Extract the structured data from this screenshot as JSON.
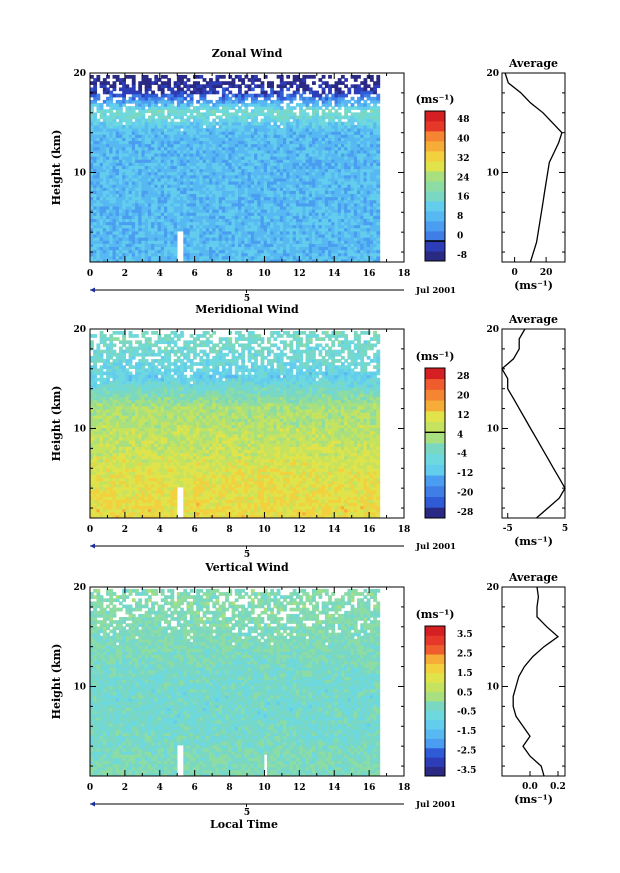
{
  "figure": {
    "date_label": "Jul 2001",
    "xlabel": "Local Time",
    "day_label": "5",
    "colorbar_unit": "(ms⁻¹)",
    "avg_unit": "(ms⁻¹)"
  },
  "chart_data": [
    {
      "type": "heatmap",
      "title": "Zonal Wind",
      "xlabel": "Local Time",
      "ylabel": "Height (km)",
      "xlim": [
        0,
        18
      ],
      "ylim": [
        1,
        20
      ],
      "xticks": [
        "0",
        "2",
        "4",
        "6",
        "8",
        "10",
        "12",
        "14",
        "16",
        "18"
      ],
      "yticks": [
        "10",
        "20"
      ],
      "data_xmax": 16.6,
      "colorbar": {
        "unit": "(ms⁻¹)",
        "min": -8,
        "max": 52,
        "step": 4,
        "zero_line": 0,
        "labels": [
          "48",
          "40",
          "32",
          "24",
          "16",
          "8",
          "0",
          "-8"
        ]
      },
      "profile_levels": [
        {
          "z": 14,
          "v": 10
        },
        {
          "z": 16,
          "v": 18
        },
        {
          "z": 18,
          "v": -4
        },
        {
          "z": 19.5,
          "v": -8
        }
      ],
      "average": {
        "title": "Average",
        "xlabel": "(ms⁻¹)",
        "xticks": [
          "0",
          "20"
        ],
        "xlim": [
          -8,
          32
        ],
        "height": [
          1,
          2,
          3,
          4,
          5,
          6,
          7,
          8,
          9,
          10,
          11,
          12,
          13,
          14,
          15,
          16,
          17,
          18,
          19,
          20
        ],
        "value": [
          10,
          12,
          14,
          15,
          16,
          17,
          18,
          19,
          20,
          21,
          22,
          25,
          28,
          30,
          24,
          18,
          10,
          4,
          -4,
          -6
        ]
      }
    },
    {
      "type": "heatmap",
      "title": "Meridional Wind",
      "xlabel": "Local Time",
      "ylabel": "Height (km)",
      "xlim": [
        0,
        18
      ],
      "ylim": [
        1,
        20
      ],
      "xticks": [
        "0",
        "2",
        "4",
        "6",
        "8",
        "10",
        "12",
        "14",
        "16",
        "18"
      ],
      "yticks": [
        "10",
        "20"
      ],
      "data_xmax": 16.6,
      "colorbar": {
        "unit": "(ms⁻¹)",
        "min": -28,
        "max": 28,
        "step": 4,
        "zero_line": 4,
        "labels": [
          "28",
          "20",
          "12",
          "4",
          "-4",
          "-12",
          "-20",
          "-28"
        ]
      },
      "profile_levels": [
        {
          "z": 2,
          "v": 10
        },
        {
          "z": 5,
          "v": 9
        },
        {
          "z": 8,
          "v": 6
        },
        {
          "z": 12,
          "v": 3
        },
        {
          "z": 15,
          "v": -8
        },
        {
          "z": 17,
          "v": -5
        },
        {
          "z": 19,
          "v": -4
        }
      ],
      "average": {
        "title": "Average",
        "xlabel": "(ms⁻¹)",
        "xticks": [
          "-5",
          "5"
        ],
        "xlim": [
          -6,
          5
        ],
        "height": [
          1,
          2,
          3,
          4,
          5,
          6,
          7,
          8,
          9,
          10,
          11,
          12,
          13,
          14,
          15,
          16,
          17,
          18,
          19,
          20
        ],
        "value": [
          0,
          2,
          4,
          5,
          4,
          3,
          2,
          1,
          0,
          -1,
          -2,
          -3,
          -4,
          -5,
          -5,
          -6,
          -4,
          -3,
          -3,
          -2
        ]
      }
    },
    {
      "type": "heatmap",
      "title": "Vertical Wind",
      "xlabel": "Local Time",
      "ylabel": "Height (km)",
      "xlim": [
        0,
        18
      ],
      "ylim": [
        1,
        20
      ],
      "xticks": [
        "0",
        "2",
        "4",
        "6",
        "8",
        "10",
        "12",
        "14",
        "16",
        "18"
      ],
      "yticks": [
        "10",
        "20"
      ],
      "data_xmax": 16.6,
      "colorbar": {
        "unit": "(ms⁻¹)",
        "min": -4,
        "max": 4,
        "step": 0.5,
        "zero_line": null,
        "labels": [
          "3.5",
          "2.5",
          "1.5",
          "0.5",
          "-0.5",
          "-1.5",
          "-2.5",
          "-3.5"
        ]
      },
      "profile_levels": [
        {
          "z": 2,
          "v": -0.3
        },
        {
          "z": 6,
          "v": -0.6
        },
        {
          "z": 10,
          "v": -0.6
        },
        {
          "z": 14,
          "v": -0.3
        },
        {
          "z": 18,
          "v": -0.2
        }
      ],
      "average": {
        "title": "Average",
        "xlabel": "(ms⁻¹)",
        "xticks": [
          "0.0",
          "0.2"
        ],
        "xlim": [
          -0.2,
          0.25
        ],
        "height": [
          1,
          2,
          3,
          4,
          5,
          6,
          7,
          8,
          9,
          10,
          11,
          12,
          13,
          14,
          15,
          16,
          17,
          18,
          19,
          20
        ],
        "value": [
          0.1,
          0.08,
          0.0,
          -0.05,
          0.0,
          -0.05,
          -0.1,
          -0.12,
          -0.12,
          -0.1,
          -0.08,
          -0.04,
          0.02,
          0.1,
          0.2,
          0.12,
          0.05,
          0.05,
          0.06,
          0.05
        ]
      }
    }
  ]
}
